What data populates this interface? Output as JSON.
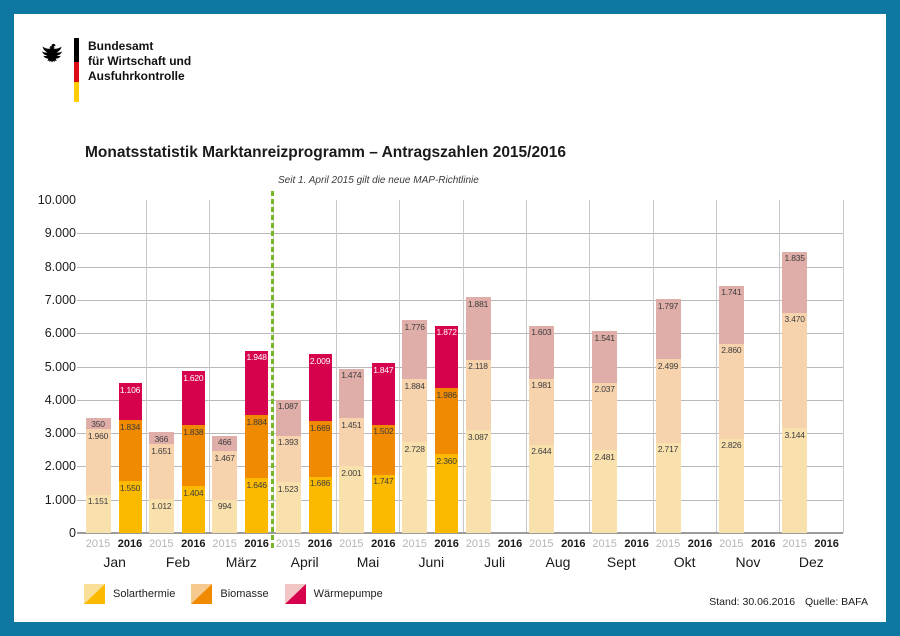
{
  "window": {
    "border_color": "#0F78A2",
    "background": "#FFFFFF"
  },
  "logo": {
    "eagle_icon": "bundesadler-federal-eagle",
    "flag_colors": [
      "#000000",
      "#DD0B16",
      "#FFCC00"
    ],
    "org_lines": [
      "Bundesamt",
      "für Wirtschaft und",
      "Ausfuhrkontrolle"
    ]
  },
  "title": "Monatsstatistik Marktanreizprogramm – Antragszahlen 2015/2016",
  "footer": {
    "stand": "Stand: 30.06.2016",
    "quelle": "Quelle: BAFA"
  },
  "legend": {
    "items": [
      {
        "label": "Solarthermie",
        "color_2015": "#FADF98",
        "color_2016": "#FBBA00"
      },
      {
        "label": "Biomasse",
        "color_2015": "#F6C98F",
        "color_2016": "#F08A00"
      },
      {
        "label": "Wärmepumpe",
        "color_2015": "#F2C6C4",
        "color_2016": "#D6024D"
      }
    ]
  },
  "chart_data": {
    "type": "bar",
    "stacked": true,
    "title": "Monatsstatistik Marktanreizprogramm – Antragszahlen 2015/2016",
    "xlabel": "",
    "ylabel": "",
    "ylim": [
      0,
      10000
    ],
    "ytick_step": 1000,
    "ytick_labels": [
      "0",
      "1.000",
      "2.000",
      "3.000",
      "4.000",
      "5.000",
      "6.000",
      "7.000",
      "8.000",
      "9.000",
      "10.000"
    ],
    "grid": true,
    "legend_position": "bottom-left",
    "categories": [
      "Jan",
      "Feb",
      "März",
      "April",
      "Mai",
      "Juni",
      "Juli",
      "Aug",
      "Sept",
      "Okt",
      "Nov",
      "Dez"
    ],
    "year_labels": [
      "2015",
      "2016"
    ],
    "vline": {
      "after_category_index": 2,
      "label": "Seit 1. April 2015 gilt die neue MAP-Richtlinie",
      "color": "#76B72A"
    },
    "groups": [
      {
        "year": "2015",
        "muted": true,
        "series": [
          {
            "name": "Solarthermie",
            "color": "#F9E1AE",
            "values": [
              1151,
              1012,
              994,
              1523,
              2001,
              2728,
              3087,
              2644,
              2481,
              2717,
              2826,
              3144
            ]
          },
          {
            "name": "Biomasse",
            "color": "#F7D3AD",
            "values": [
              1960,
              1651,
              1467,
              1393,
              1451,
              1884,
              2118,
              1981,
              2037,
              2499,
              2860,
              3470
            ]
          },
          {
            "name": "Wärmepumpe",
            "color": "#DFAEA9",
            "values": [
              350,
              366,
              466,
              1087,
              1474,
              1776,
              1881,
              1603,
              1541,
              1797,
              1741,
              1835
            ]
          }
        ]
      },
      {
        "year": "2016",
        "muted": false,
        "series": [
          {
            "name": "Solarthermie",
            "color": "#FBBA00",
            "values": [
              1550,
              1404,
              1646,
              1686,
              1747,
              2360,
              null,
              null,
              null,
              null,
              null,
              null
            ]
          },
          {
            "name": "Biomasse",
            "color": "#F08A00",
            "values": [
              1834,
              1838,
              1884,
              1669,
              1502,
              1986,
              null,
              null,
              null,
              null,
              null,
              null
            ]
          },
          {
            "name": "Wärmepumpe",
            "color": "#D6024D",
            "label_color": "#FFFFFF",
            "values": [
              1106,
              1620,
              1948,
              2009,
              1847,
              1872,
              null,
              null,
              null,
              null,
              null,
              null
            ]
          }
        ]
      }
    ]
  }
}
